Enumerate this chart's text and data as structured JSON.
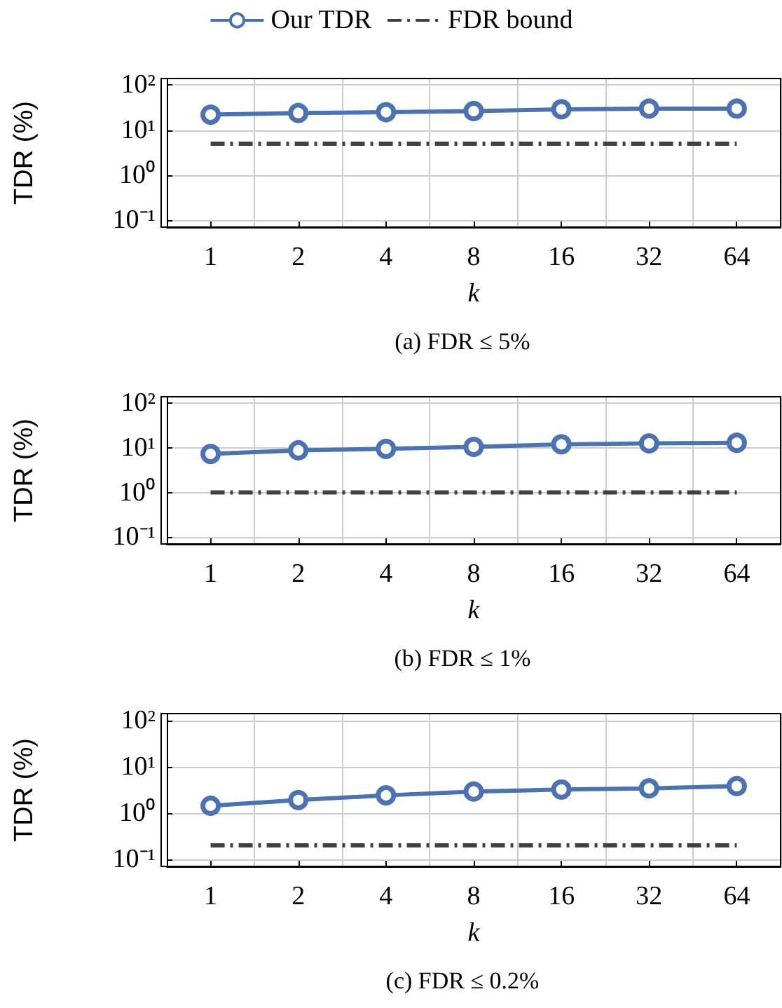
{
  "chart_data": [
    {
      "type": "line",
      "title": "(a) FDR ≤ 5%",
      "xlabel": "k",
      "ylabel": "TDR (%)",
      "categories": [
        "1",
        "2",
        "4",
        "8",
        "16",
        "32",
        "64"
      ],
      "series": [
        {
          "name": "Our TDR",
          "color": "#4c72b0",
          "marker": "circle",
          "line_style": "solid",
          "values": [
            22,
            24,
            25,
            26.5,
            29,
            30,
            30
          ]
        },
        {
          "name": "FDR bound",
          "color": "#404040",
          "marker": "none",
          "line_style": "dashed",
          "values": [
            5,
            5,
            5,
            5,
            5,
            5,
            5
          ]
        }
      ],
      "log": "y",
      "ylim": [
        0.07,
        140
      ],
      "yticks": [
        {
          "value": 0.1,
          "label": "10⁻¹"
        },
        {
          "value": 1,
          "label": "10⁰"
        },
        {
          "value": 10,
          "label": "10¹"
        },
        {
          "value": 100,
          "label": "10²"
        }
      ],
      "grid": true,
      "legend": "top"
    },
    {
      "type": "line",
      "title": "(b) FDR ≤ 1%",
      "xlabel": "k",
      "ylabel": "TDR (%)",
      "categories": [
        "1",
        "2",
        "4",
        "8",
        "16",
        "32",
        "64"
      ],
      "series": [
        {
          "color": "#4c72b0",
          "marker": "circle",
          "line_style": "solid",
          "values": [
            7.3,
            8.8,
            9.5,
            10.5,
            12,
            12.6,
            13
          ]
        },
        {
          "color": "#404040",
          "marker": "none",
          "line_style": "dashed",
          "values": [
            1,
            1,
            1,
            1,
            1,
            1,
            1
          ]
        }
      ],
      "log": "y",
      "ylim": [
        0.07,
        140
      ],
      "yticks": [
        {
          "value": 0.1,
          "label": "10⁻¹"
        },
        {
          "value": 1,
          "label": "10⁰"
        },
        {
          "value": 10,
          "label": "10¹"
        },
        {
          "value": 100,
          "label": "10²"
        }
      ],
      "grid": true
    },
    {
      "type": "line",
      "title": "(c) FDR ≤ 0.2%",
      "xlabel": "k",
      "ylabel": "TDR (%)",
      "categories": [
        "1",
        "2",
        "4",
        "8",
        "16",
        "32",
        "64"
      ],
      "series": [
        {
          "color": "#4c72b0",
          "marker": "circle",
          "line_style": "solid",
          "values": [
            1.43,
            1.9,
            2.4,
            2.9,
            3.2,
            3.4,
            3.8
          ]
        },
        {
          "color": "#404040",
          "marker": "none",
          "line_style": "dashed",
          "values": [
            0.2,
            0.2,
            0.2,
            0.2,
            0.2,
            0.2,
            0.2
          ]
        }
      ],
      "log": "y",
      "ylim": [
        0.07,
        140
      ],
      "yticks": [
        {
          "value": 0.1,
          "label": "10⁻¹"
        },
        {
          "value": 1,
          "label": "10⁰"
        },
        {
          "value": 10,
          "label": "10¹"
        },
        {
          "value": 100,
          "label": "10²"
        }
      ],
      "grid": true
    }
  ]
}
